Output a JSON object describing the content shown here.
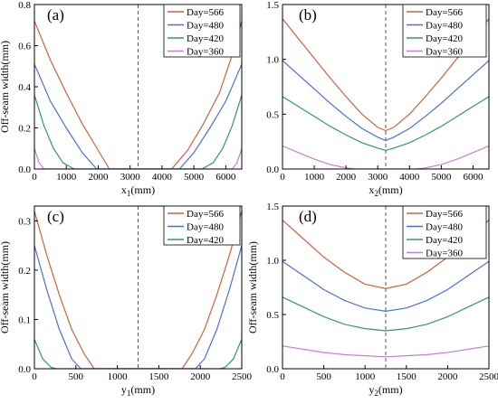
{
  "chart_data": [
    {
      "panel_label": "(a)",
      "type": "line",
      "ylabel": "Off-seam width(mm)",
      "xlabel_main": "x",
      "xlabel_sub": "1",
      "xlabel_unit": "(mm)",
      "xlim": [
        0,
        6500
      ],
      "ylim": [
        0,
        0.8
      ],
      "xticks": [
        0,
        1000,
        2000,
        3000,
        4000,
        5000,
        6000
      ],
      "xtick_labels": [
        "0",
        "1000",
        "2000",
        "3000",
        "4000",
        "5000",
        "6000"
      ],
      "yticks": [
        0,
        0.2,
        0.4,
        0.6,
        0.8
      ],
      "ytick_labels": [
        "0.0",
        "0.2",
        "0.4",
        "0.6",
        "0.8"
      ],
      "legend": "top-right",
      "dashed_line_x": 3250,
      "series": [
        {
          "name": "Day=566",
          "color": "#d1603d",
          "x": [
            0,
            500,
            1000,
            1500,
            2000,
            2350,
            2500,
            4150,
            4300,
            4800,
            5300,
            5800,
            6300,
            6500
          ],
          "y": [
            0.72,
            0.53,
            0.37,
            0.22,
            0.09,
            0.0,
            0.0,
            0.0,
            0.0,
            0.09,
            0.22,
            0.37,
            0.6,
            0.72
          ]
        },
        {
          "name": "Day=480",
          "color": "#4a6fd8",
          "x": [
            0,
            500,
            1000,
            1500,
            1950,
            2150,
            4350,
            4550,
            5000,
            5500,
            6000,
            6500
          ],
          "y": [
            0.51,
            0.33,
            0.2,
            0.08,
            0.0,
            0.0,
            0.0,
            0.0,
            0.08,
            0.2,
            0.33,
            0.51
          ]
        },
        {
          "name": "Day=420",
          "color": "#2e9a6a",
          "x": [
            0,
            300,
            600,
            900,
            1250,
            1400,
            5100,
            5250,
            5600,
            5900,
            6200,
            6500
          ],
          "y": [
            0.36,
            0.21,
            0.1,
            0.03,
            0.0,
            0.0,
            0.0,
            0.0,
            0.03,
            0.1,
            0.21,
            0.36
          ]
        },
        {
          "name": "Day=360",
          "color": "#c77dd9",
          "x": [
            0,
            150,
            300,
            400,
            6100,
            6200,
            6350,
            6500
          ],
          "y": [
            0.1,
            0.03,
            0.0,
            0.0,
            0.0,
            0.0,
            0.03,
            0.1
          ]
        }
      ]
    },
    {
      "panel_label": "(b)",
      "type": "line",
      "ylabel": "",
      "xlabel_main": "x",
      "xlabel_sub": "2",
      "xlabel_unit": "(mm)",
      "xlim": [
        0,
        6500
      ],
      "ylim": [
        0,
        1.5
      ],
      "xticks": [
        0,
        1000,
        2000,
        3000,
        4000,
        5000,
        6000
      ],
      "xtick_labels": [
        "0",
        "1000",
        "2000",
        "3000",
        "4000",
        "5000",
        "6000"
      ],
      "yticks": [
        0,
        0.5,
        1.0,
        1.5
      ],
      "ytick_labels": [
        "0.0",
        "0.5",
        "1.0",
        "1.5"
      ],
      "legend": "top-right",
      "dashed_line_x": 3250,
      "series": [
        {
          "name": "Day=566",
          "color": "#d1603d",
          "x": [
            0,
            500,
            1000,
            1500,
            2000,
            2500,
            3000,
            3250,
            3500,
            4000,
            4500,
            5000,
            5500,
            6000,
            6500
          ],
          "y": [
            1.37,
            1.19,
            1.01,
            0.83,
            0.66,
            0.5,
            0.38,
            0.35,
            0.38,
            0.5,
            0.66,
            0.83,
            1.01,
            1.19,
            1.37
          ]
        },
        {
          "name": "Day=480",
          "color": "#4a6fd8",
          "x": [
            0,
            500,
            1000,
            1500,
            2000,
            2500,
            3000,
            3250,
            3500,
            4000,
            4500,
            5000,
            5500,
            6000,
            6500
          ],
          "y": [
            0.99,
            0.86,
            0.73,
            0.6,
            0.48,
            0.37,
            0.29,
            0.26,
            0.29,
            0.37,
            0.48,
            0.6,
            0.73,
            0.86,
            0.99
          ]
        },
        {
          "name": "Day=420",
          "color": "#2e9a6a",
          "x": [
            0,
            500,
            1000,
            1500,
            2000,
            2500,
            3000,
            3250,
            3500,
            4000,
            4500,
            5000,
            5500,
            6000,
            6500
          ],
          "y": [
            0.66,
            0.57,
            0.48,
            0.39,
            0.31,
            0.24,
            0.19,
            0.17,
            0.19,
            0.24,
            0.31,
            0.39,
            0.48,
            0.57,
            0.66
          ]
        },
        {
          "name": "Day=360",
          "color": "#c77dd9",
          "x": [
            0,
            500,
            1000,
            1500,
            2000,
            2300,
            2500,
            4000,
            4200,
            4500,
            5000,
            5500,
            6000,
            6500
          ],
          "y": [
            0.21,
            0.15,
            0.09,
            0.04,
            0.01,
            0.0,
            0.0,
            0.0,
            0.0,
            0.01,
            0.04,
            0.09,
            0.15,
            0.21
          ]
        }
      ]
    },
    {
      "panel_label": "(c)",
      "type": "line",
      "ylabel": "Off-seam width(mm)",
      "xlabel_main": "y",
      "xlabel_sub": "1",
      "xlabel_unit": "(mm)",
      "xlim": [
        0,
        2500
      ],
      "ylim": [
        0,
        0.33
      ],
      "xticks": [
        0,
        500,
        1000,
        1500,
        2000,
        2500
      ],
      "xtick_labels": [
        "0",
        "500",
        "1000",
        "1500",
        "2000",
        "2500"
      ],
      "yticks": [
        0,
        0.1,
        0.2,
        0.3
      ],
      "ytick_labels": [
        "0.0",
        "0.1",
        "0.2",
        "0.3"
      ],
      "legend": "top-right",
      "dashed_line_x": 1250,
      "series": [
        {
          "name": "Day=566",
          "color": "#d1603d",
          "x": [
            0,
            150,
            300,
            450,
            600,
            720,
            800,
            1700,
            1780,
            1900,
            2050,
            2200,
            2350,
            2500
          ],
          "y": [
            0.32,
            0.23,
            0.15,
            0.08,
            0.03,
            0.0,
            0.0,
            0.0,
            0.0,
            0.03,
            0.08,
            0.15,
            0.23,
            0.32
          ]
        },
        {
          "name": "Day=480",
          "color": "#4a6fd8",
          "x": [
            0,
            150,
            300,
            450,
            560,
            650,
            1850,
            1940,
            2050,
            2200,
            2350,
            2500
          ],
          "y": [
            0.25,
            0.16,
            0.08,
            0.02,
            0.0,
            0.0,
            0.0,
            0.0,
            0.02,
            0.08,
            0.16,
            0.25
          ]
        },
        {
          "name": "Day=420",
          "color": "#2e9a6a",
          "x": [
            0,
            100,
            200,
            260,
            320,
            2180,
            2240,
            2300,
            2400,
            2500
          ],
          "y": [
            0.06,
            0.02,
            0.003,
            0.0,
            0.0,
            0.0,
            0.0,
            0.003,
            0.02,
            0.06
          ]
        }
      ]
    },
    {
      "panel_label": "(d)",
      "type": "line",
      "ylabel": "Off-seam width(mm)",
      "xlabel_main": "y",
      "xlabel_sub": "2",
      "xlabel_unit": "(mm)",
      "xlim": [
        0,
        2500
      ],
      "ylim": [
        0,
        1.5
      ],
      "xticks": [
        0,
        500,
        1000,
        1500,
        2000,
        2500
      ],
      "xtick_labels": [
        "0",
        "500",
        "1000",
        "1500",
        "2000",
        "2500"
      ],
      "yticks": [
        0,
        0.5,
        1.0,
        1.5
      ],
      "ytick_labels": [
        "0.0",
        "0.5",
        "1.0",
        "1.5"
      ],
      "legend": "top-right",
      "dashed_line_x": 1250,
      "series": [
        {
          "name": "Day=566",
          "color": "#d1603d",
          "x": [
            0,
            250,
            500,
            750,
            1000,
            1250,
            1500,
            1750,
            2000,
            2250,
            2500
          ],
          "y": [
            1.37,
            1.2,
            1.03,
            0.89,
            0.78,
            0.74,
            0.78,
            0.89,
            1.03,
            1.2,
            1.37
          ]
        },
        {
          "name": "Day=480",
          "color": "#4a6fd8",
          "x": [
            0,
            250,
            500,
            750,
            1000,
            1250,
            1500,
            1750,
            2000,
            2250,
            2500
          ],
          "y": [
            0.99,
            0.86,
            0.73,
            0.63,
            0.56,
            0.53,
            0.56,
            0.63,
            0.73,
            0.86,
            0.99
          ]
        },
        {
          "name": "Day=420",
          "color": "#2e9a6a",
          "x": [
            0,
            250,
            500,
            750,
            1000,
            1250,
            1500,
            1750,
            2000,
            2250,
            2500
          ],
          "y": [
            0.66,
            0.57,
            0.48,
            0.41,
            0.37,
            0.35,
            0.37,
            0.41,
            0.48,
            0.57,
            0.66
          ]
        },
        {
          "name": "Day=360",
          "color": "#c77dd9",
          "x": [
            0,
            250,
            500,
            750,
            1000,
            1250,
            1500,
            1750,
            2000,
            2250,
            2500
          ],
          "y": [
            0.21,
            0.18,
            0.15,
            0.13,
            0.12,
            0.11,
            0.12,
            0.13,
            0.15,
            0.18,
            0.21
          ]
        }
      ]
    }
  ]
}
